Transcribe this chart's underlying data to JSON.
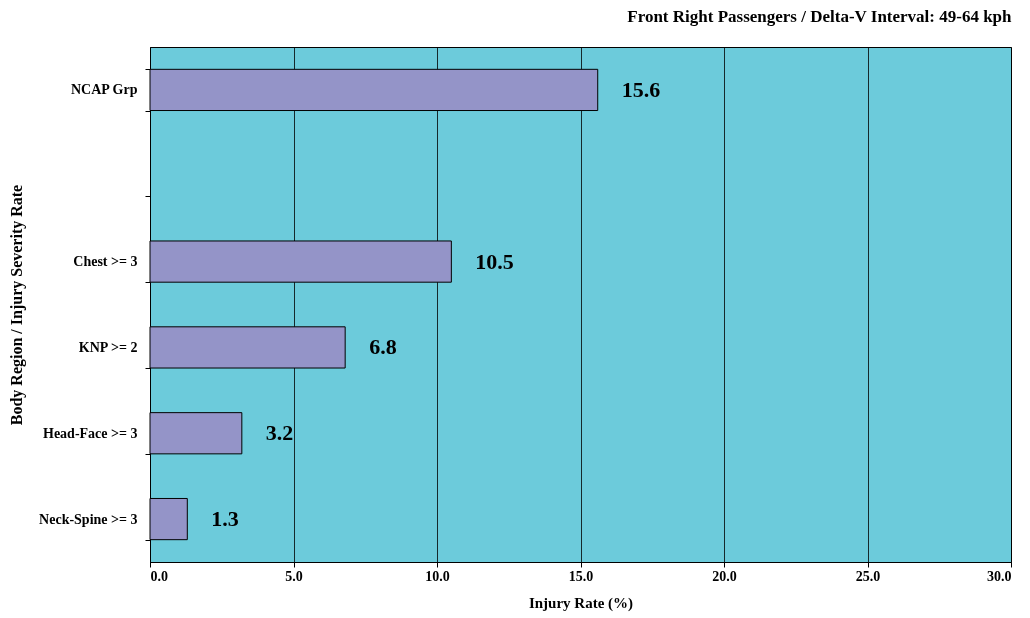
{
  "chart_data": {
    "type": "bar",
    "orientation": "horizontal",
    "title": "Front Right Passengers / Delta-V Interval: 49-64 kph",
    "xlabel": "Injury Rate (%)",
    "ylabel": "Body Region / Injury Severity Rate",
    "categories": [
      "NCAP Grp",
      null,
      "Chest >= 3",
      "KNP >= 2",
      "Head-Face >= 3",
      "Neck-Spine >= 3"
    ],
    "values": [
      15.6,
      null,
      10.5,
      6.8,
      3.2,
      1.3
    ],
    "color": "#9494c8",
    "xlim": [
      0,
      30
    ],
    "xticks": [
      {
        "value": 0,
        "label": "0.0"
      },
      {
        "value": 5,
        "label": "5.0"
      },
      {
        "value": 10,
        "label": "10.0"
      },
      {
        "value": 15,
        "label": "15.0"
      },
      {
        "value": 20,
        "label": "20.0"
      },
      {
        "value": 25,
        "label": "25.0"
      },
      {
        "value": 30,
        "label": "30.0"
      }
    ],
    "grid": "x",
    "data_labels": true
  }
}
